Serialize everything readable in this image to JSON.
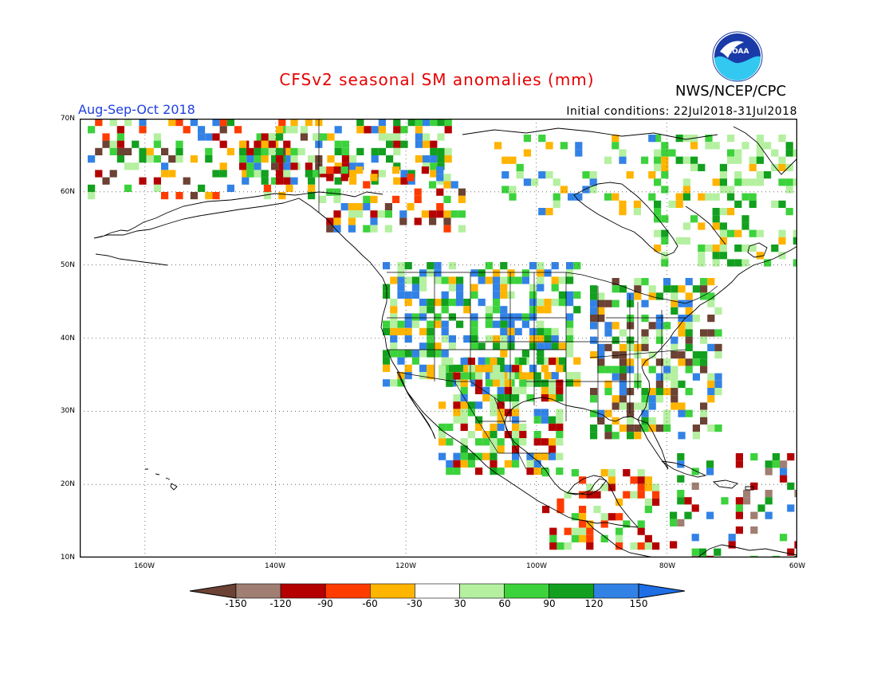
{
  "header": {
    "title": "CFSv2 seasonal SM anomalies (mm)",
    "period": "Aug-Sep-Oct 2018",
    "initial_conditions": "Initial conditions: 22Jul2018-31Jul2018",
    "agency": "NWS/NCEP/CPC",
    "logo_text": "NOAA"
  },
  "map": {
    "lat_labels": [
      "70N",
      "60N",
      "50N",
      "40N",
      "30N",
      "20N",
      "10N"
    ],
    "lon_labels": [
      "160W",
      "140W",
      "120W",
      "100W",
      "80W",
      "60W"
    ],
    "grid": "dotted"
  },
  "colorbar": {
    "labels": [
      "-150",
      "-120",
      "-90",
      "-60",
      "-30",
      "30",
      "60",
      "90",
      "120",
      "150"
    ],
    "colors": {
      "lt_m150": "#6b4233",
      "m150_m120": "#a07e72",
      "m120_m90": "#b40000",
      "m90_m60": "#ff3c00",
      "m60_m30": "#ffb400",
      "m30_30": "#ffffff",
      "30_60": "#b4f0a0",
      "60_90": "#3cd23c",
      "90_120": "#12a01e",
      "120_150": "#3282e6",
      "gt_150": "#1e6ee6"
    }
  }
}
